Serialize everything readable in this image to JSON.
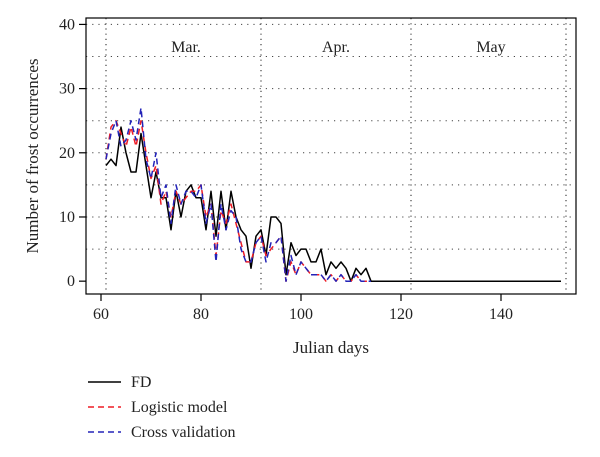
{
  "chart_data": {
    "type": "line",
    "xlabel": "Julian days",
    "ylabel": "Number of frost occurrences",
    "xlim": [
      57,
      155
    ],
    "ylim": [
      -2,
      41
    ],
    "xticks": [
      60,
      80,
      100,
      120,
      140
    ],
    "yticks": [
      0,
      10,
      20,
      30,
      40
    ],
    "grid": "dotted",
    "month_boundaries": [
      61,
      92,
      122,
      153
    ],
    "months": [
      {
        "label": "Mar.",
        "center": 77
      },
      {
        "label": "Apr.",
        "center": 107
      },
      {
        "label": "May",
        "center": 138
      }
    ],
    "legend_placement": "bottom-left",
    "series": [
      {
        "name": "FD",
        "color": "#000000",
        "dash": "solid",
        "x": [
          61,
          62,
          63,
          64,
          65,
          66,
          67,
          68,
          69,
          70,
          71,
          72,
          73,
          74,
          75,
          76,
          77,
          78,
          79,
          80,
          81,
          82,
          83,
          84,
          85,
          86,
          87,
          88,
          89,
          90,
          91,
          92,
          93,
          94,
          95,
          96,
          97,
          98,
          99,
          100,
          101,
          102,
          103,
          104,
          105,
          106,
          107,
          108,
          109,
          110,
          111,
          112,
          113,
          114,
          115,
          116,
          117,
          118,
          119,
          120,
          121,
          122,
          123,
          124,
          125,
          126,
          127,
          128,
          129,
          130,
          131,
          132,
          133,
          134,
          135,
          136,
          137,
          138,
          139,
          140,
          141,
          142,
          143,
          144,
          145,
          146,
          147,
          148,
          149,
          150,
          151,
          152
        ],
        "y": [
          18,
          19,
          18,
          24,
          20,
          17,
          17,
          23,
          18,
          13,
          17,
          13,
          13,
          8,
          14,
          10,
          14,
          15,
          13,
          13,
          8,
          14,
          7,
          14,
          8,
          14,
          10,
          8,
          7,
          2,
          7,
          8,
          4,
          10,
          10,
          9,
          1,
          6,
          4,
          5,
          5,
          3,
          3,
          5,
          1,
          3,
          2,
          3,
          2,
          0,
          2,
          1,
          2,
          0,
          0,
          0,
          0,
          0,
          0,
          0,
          0,
          0,
          0,
          0,
          0,
          0,
          0,
          0,
          0,
          0,
          0,
          0,
          0,
          0,
          0,
          0,
          0,
          0,
          0,
          0,
          0,
          0,
          0,
          0,
          0,
          0,
          0,
          0,
          0,
          0,
          0,
          0
        ]
      },
      {
        "name": "Logistic model",
        "color": "#ee1c25",
        "dash": "dashed",
        "x": [
          61,
          62,
          63,
          64,
          65,
          66,
          67,
          68,
          69,
          70,
          71,
          72,
          73,
          74,
          75,
          76,
          77,
          78,
          79,
          80,
          81,
          82,
          83,
          84,
          85,
          86,
          87,
          88,
          89,
          90,
          91,
          92,
          93,
          94,
          95,
          96,
          97,
          98,
          99,
          100,
          101,
          102,
          103,
          104,
          105,
          106,
          107,
          108,
          109,
          110,
          111,
          112,
          113,
          114
        ],
        "y": [
          19,
          24,
          25,
          23,
          21,
          24,
          21,
          25,
          20,
          16,
          18,
          12,
          14,
          10,
          14,
          12,
          13,
          14,
          14,
          15,
          10,
          12,
          4,
          11,
          9,
          12,
          9,
          6,
          3,
          3,
          6,
          7,
          4,
          5,
          6,
          7,
          0,
          3,
          1,
          3,
          2,
          1,
          1,
          1,
          0,
          1,
          0,
          1,
          0,
          0,
          1,
          0,
          0,
          0
        ]
      },
      {
        "name": "Cross validation",
        "color": "#2323b8",
        "dash": "dashed",
        "x": [
          61,
          62,
          63,
          64,
          65,
          66,
          67,
          68,
          69,
          70,
          71,
          72,
          73,
          74,
          75,
          76,
          77,
          78,
          79,
          80,
          81,
          82,
          83,
          84,
          85,
          86,
          87,
          88,
          89,
          90,
          91,
          92,
          93,
          94,
          95,
          96,
          97,
          98,
          99,
          100,
          101,
          102,
          103,
          104,
          105,
          106,
          107,
          108,
          109,
          110,
          111,
          112,
          113,
          114
        ],
        "y": [
          19,
          23,
          25,
          21,
          22,
          25,
          22,
          27,
          19,
          16,
          20,
          13,
          15,
          9,
          15,
          12,
          14,
          14,
          13,
          15,
          9,
          12,
          3,
          12,
          8,
          11,
          10,
          5,
          3,
          3,
          6,
          7,
          3,
          6,
          6,
          7,
          0,
          4,
          1,
          3,
          2,
          1,
          1,
          1,
          0,
          1,
          0,
          1,
          0,
          0,
          1,
          0,
          0,
          0
        ]
      }
    ]
  }
}
